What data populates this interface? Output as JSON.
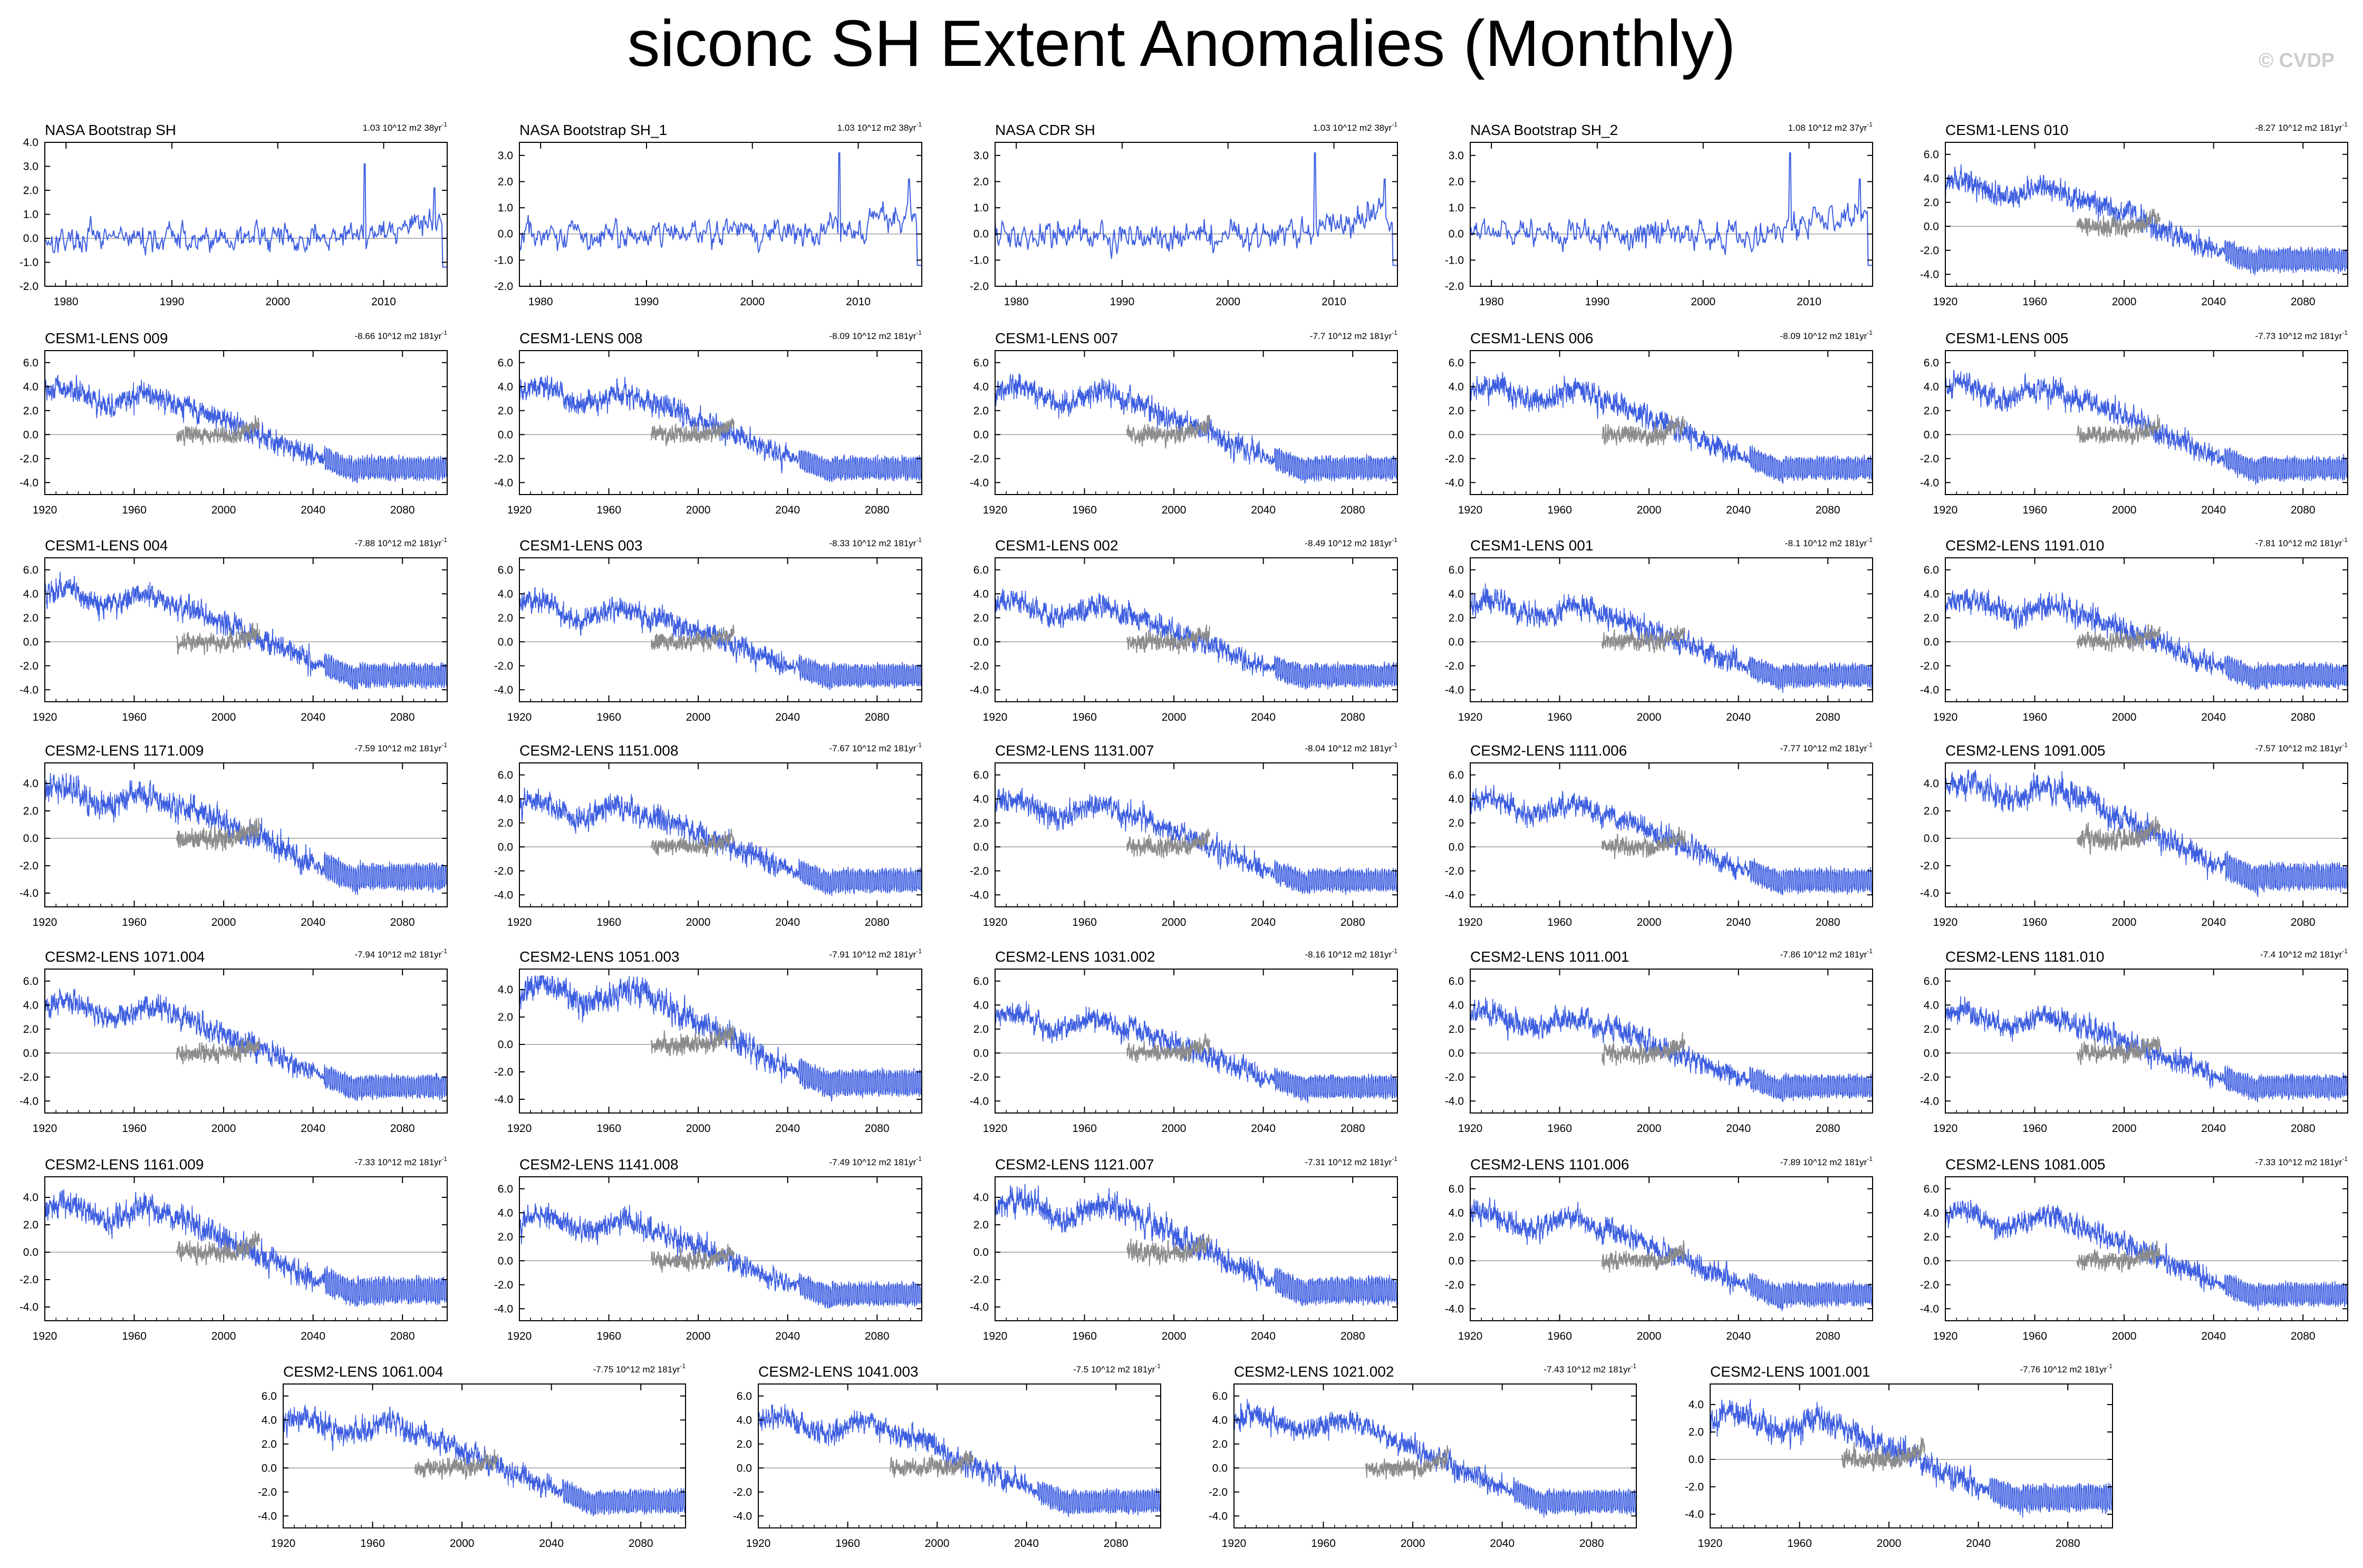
{
  "figure": {
    "title": "siconc SH Extent Anomalies (Monthly)",
    "watermark": "© CVDP"
  },
  "colors": {
    "model": "#3d5ee0",
    "observed": "#8c8c8c",
    "zero_line": "#b4b4b4",
    "axis": "#000000"
  },
  "chart_data": [
    {
      "type": "line",
      "title": "NASA Bootstrap SH",
      "trend": "1.03 10^12 m2 38yr",
      "xlim": [
        1978,
        2016
      ],
      "xticks": [
        1980,
        1990,
        2000,
        2010
      ],
      "ylim": [
        -2,
        4
      ],
      "yticks": [
        -2,
        -1,
        0,
        1,
        2,
        3,
        4
      ],
      "ytick_labels": [
        "-2.0",
        "-1.0",
        "0.0",
        "1.0",
        "2.0",
        "3.0",
        "4.0"
      ],
      "kind": "obs"
    },
    {
      "type": "line",
      "title": "NASA Bootstrap SH_1",
      "trend": "1.03 10^12 m2 38yr",
      "xlim": [
        1978,
        2016
      ],
      "xticks": [
        1980,
        1990,
        2000,
        2010
      ],
      "ylim": [
        -2,
        3.5
      ],
      "yticks": [
        -2,
        -1,
        0,
        1,
        2,
        3
      ],
      "ytick_labels": [
        "-2.0",
        "-1.0",
        "0.0",
        "1.0",
        "2.0",
        "3.0"
      ],
      "kind": "obs"
    },
    {
      "type": "line",
      "title": "NASA CDR SH",
      "trend": "1.03 10^12 m2 38yr",
      "xlim": [
        1978,
        2016
      ],
      "xticks": [
        1980,
        1990,
        2000,
        2010
      ],
      "ylim": [
        -2,
        3.5
      ],
      "yticks": [
        -2,
        -1,
        0,
        1,
        2,
        3
      ],
      "ytick_labels": [
        "-2.0",
        "-1.0",
        "0.0",
        "1.0",
        "2.0",
        "3.0"
      ],
      "kind": "obs"
    },
    {
      "type": "line",
      "title": "NASA Bootstrap SH_2",
      "trend": "1.08 10^12 m2 37yr",
      "xlim": [
        1978,
        2016
      ],
      "xticks": [
        1980,
        1990,
        2000,
        2010
      ],
      "ylim": [
        -2,
        3.5
      ],
      "yticks": [
        -2,
        -1,
        0,
        1,
        2,
        3
      ],
      "ytick_labels": [
        "-2.0",
        "-1.0",
        "0.0",
        "1.0",
        "2.0",
        "3.0"
      ],
      "kind": "obs"
    },
    {
      "type": "line",
      "title": "CESM1-LENS 010",
      "trend": "-8.27 10^12 m2 181yr",
      "xlim": [
        1920,
        2100
      ],
      "xticks": [
        1920,
        1960,
        2000,
        2040,
        2080
      ],
      "ylim": [
        -5,
        7
      ],
      "yticks": [
        -4,
        -2,
        0,
        2,
        4,
        6
      ],
      "ytick_labels": [
        "-4.0",
        "-2.0",
        "0.0",
        "2.0",
        "4.0",
        "6.0"
      ],
      "kind": "model"
    },
    {
      "type": "line",
      "title": "CESM1-LENS 009",
      "trend": "-8.66 10^12 m2 181yr",
      "xlim": [
        1920,
        2100
      ],
      "xticks": [
        1920,
        1960,
        2000,
        2040,
        2080
      ],
      "ylim": [
        -5,
        7
      ],
      "yticks": [
        -4,
        -2,
        0,
        2,
        4,
        6
      ],
      "ytick_labels": [
        "-4.0",
        "-2.0",
        "0.0",
        "2.0",
        "4.0",
        "6.0"
      ],
      "kind": "model"
    },
    {
      "type": "line",
      "title": "CESM1-LENS 008",
      "trend": "-8.09 10^12 m2 181yr",
      "xlim": [
        1920,
        2100
      ],
      "xticks": [
        1920,
        1960,
        2000,
        2040,
        2080
      ],
      "ylim": [
        -5,
        7
      ],
      "yticks": [
        -4,
        -2,
        0,
        2,
        4,
        6
      ],
      "ytick_labels": [
        "-4.0",
        "-2.0",
        "0.0",
        "2.0",
        "4.0",
        "6.0"
      ],
      "kind": "model"
    },
    {
      "type": "line",
      "title": "CESM1-LENS 007",
      "trend": "-7.7 10^12 m2 181yr",
      "xlim": [
        1920,
        2100
      ],
      "xticks": [
        1920,
        1960,
        2000,
        2040,
        2080
      ],
      "ylim": [
        -5,
        7
      ],
      "yticks": [
        -4,
        -2,
        0,
        2,
        4,
        6
      ],
      "ytick_labels": [
        "-4.0",
        "-2.0",
        "0.0",
        "2.0",
        "4.0",
        "6.0"
      ],
      "kind": "model"
    },
    {
      "type": "line",
      "title": "CESM1-LENS 006",
      "trend": "-8.09 10^12 m2 181yr",
      "xlim": [
        1920,
        2100
      ],
      "xticks": [
        1920,
        1960,
        2000,
        2040,
        2080
      ],
      "ylim": [
        -5,
        7
      ],
      "yticks": [
        -4,
        -2,
        0,
        2,
        4,
        6
      ],
      "ytick_labels": [
        "-4.0",
        "-2.0",
        "0.0",
        "2.0",
        "4.0",
        "6.0"
      ],
      "kind": "model"
    },
    {
      "type": "line",
      "title": "CESM1-LENS 005",
      "trend": "-7.73 10^12 m2 181yr",
      "xlim": [
        1920,
        2100
      ],
      "xticks": [
        1920,
        1960,
        2000,
        2040,
        2080
      ],
      "ylim": [
        -5,
        7
      ],
      "yticks": [
        -4,
        -2,
        0,
        2,
        4,
        6
      ],
      "ytick_labels": [
        "-4.0",
        "-2.0",
        "0.0",
        "2.0",
        "4.0",
        "6.0"
      ],
      "kind": "model"
    },
    {
      "type": "line",
      "title": "CESM1-LENS 004",
      "trend": "-7.88 10^12 m2 181yr",
      "xlim": [
        1920,
        2100
      ],
      "xticks": [
        1920,
        1960,
        2000,
        2040,
        2080
      ],
      "ylim": [
        -5,
        7
      ],
      "yticks": [
        -4,
        -2,
        0,
        2,
        4,
        6
      ],
      "ytick_labels": [
        "-4.0",
        "-2.0",
        "0.0",
        "2.0",
        "4.0",
        "6.0"
      ],
      "kind": "model"
    },
    {
      "type": "line",
      "title": "CESM1-LENS 003",
      "trend": "-8.33 10^12 m2 181yr",
      "xlim": [
        1920,
        2100
      ],
      "xticks": [
        1920,
        1960,
        2000,
        2040,
        2080
      ],
      "ylim": [
        -5,
        7
      ],
      "yticks": [
        -4,
        -2,
        0,
        2,
        4,
        6
      ],
      "ytick_labels": [
        "-4.0",
        "-2.0",
        "0.0",
        "2.0",
        "4.0",
        "6.0"
      ],
      "kind": "model"
    },
    {
      "type": "line",
      "title": "CESM1-LENS 002",
      "trend": "-8.49 10^12 m2 181yr",
      "xlim": [
        1920,
        2100
      ],
      "xticks": [
        1920,
        1960,
        2000,
        2040,
        2080
      ],
      "ylim": [
        -5,
        7
      ],
      "yticks": [
        -4,
        -2,
        0,
        2,
        4,
        6
      ],
      "ytick_labels": [
        "-4.0",
        "-2.0",
        "0.0",
        "2.0",
        "4.0",
        "6.0"
      ],
      "kind": "model"
    },
    {
      "type": "line",
      "title": "CESM1-LENS 001",
      "trend": "-8.1 10^12 m2 181yr",
      "xlim": [
        1920,
        2100
      ],
      "xticks": [
        1920,
        1960,
        2000,
        2040,
        2080
      ],
      "ylim": [
        -5,
        7
      ],
      "yticks": [
        -4,
        -2,
        0,
        2,
        4,
        6
      ],
      "ytick_labels": [
        "-4.0",
        "-2.0",
        "0.0",
        "2.0",
        "4.0",
        "6.0"
      ],
      "kind": "model"
    },
    {
      "type": "line",
      "title": "CESM2-LENS 1191.010",
      "trend": "-7.81 10^12 m2 181yr",
      "xlim": [
        1920,
        2100
      ],
      "xticks": [
        1920,
        1960,
        2000,
        2040,
        2080
      ],
      "ylim": [
        -5,
        7
      ],
      "yticks": [
        -4,
        -2,
        0,
        2,
        4,
        6
      ],
      "ytick_labels": [
        "-4.0",
        "-2.0",
        "0.0",
        "2.0",
        "4.0",
        "6.0"
      ],
      "kind": "model"
    },
    {
      "type": "line",
      "title": "CESM2-LENS 1171.009",
      "trend": "-7.59 10^12 m2 181yr",
      "xlim": [
        1920,
        2100
      ],
      "xticks": [
        1920,
        1960,
        2000,
        2040,
        2080
      ],
      "ylim": [
        -5,
        5.5
      ],
      "yticks": [
        -4,
        -2,
        0,
        2,
        4
      ],
      "ytick_labels": [
        "-4.0",
        "-2.0",
        "0.0",
        "2.0",
        "4.0"
      ],
      "kind": "model"
    },
    {
      "type": "line",
      "title": "CESM2-LENS 1151.008",
      "trend": "-7.67 10^12 m2 181yr",
      "xlim": [
        1920,
        2100
      ],
      "xticks": [
        1920,
        1960,
        2000,
        2040,
        2080
      ],
      "ylim": [
        -5,
        7
      ],
      "yticks": [
        -4,
        -2,
        0,
        2,
        4,
        6
      ],
      "ytick_labels": [
        "-4.0",
        "-2.0",
        "0.0",
        "2.0",
        "4.0",
        "6.0"
      ],
      "kind": "model"
    },
    {
      "type": "line",
      "title": "CESM2-LENS 1131.007",
      "trend": "-8.04 10^12 m2 181yr",
      "xlim": [
        1920,
        2100
      ],
      "xticks": [
        1920,
        1960,
        2000,
        2040,
        2080
      ],
      "ylim": [
        -5,
        7
      ],
      "yticks": [
        -4,
        -2,
        0,
        2,
        4,
        6
      ],
      "ytick_labels": [
        "-4.0",
        "-2.0",
        "0.0",
        "2.0",
        "4.0",
        "6.0"
      ],
      "kind": "model"
    },
    {
      "type": "line",
      "title": "CESM2-LENS 1111.006",
      "trend": "-7.77 10^12 m2 181yr",
      "xlim": [
        1920,
        2100
      ],
      "xticks": [
        1920,
        1960,
        2000,
        2040,
        2080
      ],
      "ylim": [
        -5,
        7
      ],
      "yticks": [
        -4,
        -2,
        0,
        2,
        4,
        6
      ],
      "ytick_labels": [
        "-4.0",
        "-2.0",
        "0.0",
        "2.0",
        "4.0",
        "6.0"
      ],
      "kind": "model"
    },
    {
      "type": "line",
      "title": "CESM2-LENS 1091.005",
      "trend": "-7.57 10^12 m2 181yr",
      "xlim": [
        1920,
        2100
      ],
      "xticks": [
        1920,
        1960,
        2000,
        2040,
        2080
      ],
      "ylim": [
        -5,
        5.5
      ],
      "yticks": [
        -4,
        -2,
        0,
        2,
        4
      ],
      "ytick_labels": [
        "-4.0",
        "-2.0",
        "0.0",
        "2.0",
        "4.0"
      ],
      "kind": "model"
    },
    {
      "type": "line",
      "title": "CESM2-LENS 1071.004",
      "trend": "-7.94 10^12 m2 181yr",
      "xlim": [
        1920,
        2100
      ],
      "xticks": [
        1920,
        1960,
        2000,
        2040,
        2080
      ],
      "ylim": [
        -5,
        7
      ],
      "yticks": [
        -4,
        -2,
        0,
        2,
        4,
        6
      ],
      "ytick_labels": [
        "-4.0",
        "-2.0",
        "0.0",
        "2.0",
        "4.0",
        "6.0"
      ],
      "kind": "model"
    },
    {
      "type": "line",
      "title": "CESM2-LENS 1051.003",
      "trend": "-7.91 10^12 m2 181yr",
      "xlim": [
        1920,
        2100
      ],
      "xticks": [
        1920,
        1960,
        2000,
        2040,
        2080
      ],
      "ylim": [
        -5,
        5.5
      ],
      "yticks": [
        -4,
        -2,
        0,
        2,
        4
      ],
      "ytick_labels": [
        "-4.0",
        "-2.0",
        "0.0",
        "2.0",
        "4.0"
      ],
      "kind": "model"
    },
    {
      "type": "line",
      "title": "CESM2-LENS 1031.002",
      "trend": "-8.16 10^12 m2 181yr",
      "xlim": [
        1920,
        2100
      ],
      "xticks": [
        1920,
        1960,
        2000,
        2040,
        2080
      ],
      "ylim": [
        -5,
        7
      ],
      "yticks": [
        -4,
        -2,
        0,
        2,
        4,
        6
      ],
      "ytick_labels": [
        "-4.0",
        "-2.0",
        "0.0",
        "2.0",
        "4.0",
        "6.0"
      ],
      "kind": "model"
    },
    {
      "type": "line",
      "title": "CESM2-LENS 1011.001",
      "trend": "-7.86 10^12 m2 181yr",
      "xlim": [
        1920,
        2100
      ],
      "xticks": [
        1920,
        1960,
        2000,
        2040,
        2080
      ],
      "ylim": [
        -5,
        7
      ],
      "yticks": [
        -4,
        -2,
        0,
        2,
        4,
        6
      ],
      "ytick_labels": [
        "-4.0",
        "-2.0",
        "0.0",
        "2.0",
        "4.0",
        "6.0"
      ],
      "kind": "model"
    },
    {
      "type": "line",
      "title": "CESM2-LENS 1181.010",
      "trend": "-7.4 10^12 m2 181yr",
      "xlim": [
        1920,
        2100
      ],
      "xticks": [
        1920,
        1960,
        2000,
        2040,
        2080
      ],
      "ylim": [
        -5,
        7
      ],
      "yticks": [
        -4,
        -2,
        0,
        2,
        4,
        6
      ],
      "ytick_labels": [
        "-4.0",
        "-2.0",
        "0.0",
        "2.0",
        "4.0",
        "6.0"
      ],
      "kind": "model"
    },
    {
      "type": "line",
      "title": "CESM2-LENS 1161.009",
      "trend": "-7.33 10^12 m2 181yr",
      "xlim": [
        1920,
        2100
      ],
      "xticks": [
        1920,
        1960,
        2000,
        2040,
        2080
      ],
      "ylim": [
        -5,
        5.5
      ],
      "yticks": [
        -4,
        -2,
        0,
        2,
        4
      ],
      "ytick_labels": [
        "-4.0",
        "-2.0",
        "0.0",
        "2.0",
        "4.0"
      ],
      "kind": "model"
    },
    {
      "type": "line",
      "title": "CESM2-LENS 1141.008",
      "trend": "-7.49 10^12 m2 181yr",
      "xlim": [
        1920,
        2100
      ],
      "xticks": [
        1920,
        1960,
        2000,
        2040,
        2080
      ],
      "ylim": [
        -5,
        7
      ],
      "yticks": [
        -4,
        -2,
        0,
        2,
        4,
        6
      ],
      "ytick_labels": [
        "-4.0",
        "-2.0",
        "0.0",
        "2.0",
        "4.0",
        "6.0"
      ],
      "kind": "model"
    },
    {
      "type": "line",
      "title": "CESM2-LENS 1121.007",
      "trend": "-7.31 10^12 m2 181yr",
      "xlim": [
        1920,
        2100
      ],
      "xticks": [
        1920,
        1960,
        2000,
        2040,
        2080
      ],
      "ylim": [
        -5,
        5.5
      ],
      "yticks": [
        -4,
        -2,
        0,
        2,
        4
      ],
      "ytick_labels": [
        "-4.0",
        "-2.0",
        "0.0",
        "2.0",
        "4.0"
      ],
      "kind": "model"
    },
    {
      "type": "line",
      "title": "CESM2-LENS 1101.006",
      "trend": "-7.89 10^12 m2 181yr",
      "xlim": [
        1920,
        2100
      ],
      "xticks": [
        1920,
        1960,
        2000,
        2040,
        2080
      ],
      "ylim": [
        -5,
        7
      ],
      "yticks": [
        -4,
        -2,
        0,
        2,
        4,
        6
      ],
      "ytick_labels": [
        "-4.0",
        "-2.0",
        "0.0",
        "2.0",
        "4.0",
        "6.0"
      ],
      "kind": "model"
    },
    {
      "type": "line",
      "title": "CESM2-LENS 1081.005",
      "trend": "-7.33 10^12 m2 181yr",
      "xlim": [
        1920,
        2100
      ],
      "xticks": [
        1920,
        1960,
        2000,
        2040,
        2080
      ],
      "ylim": [
        -5,
        7
      ],
      "yticks": [
        -4,
        -2,
        0,
        2,
        4,
        6
      ],
      "ytick_labels": [
        "-4.0",
        "-2.0",
        "0.0",
        "2.0",
        "4.0",
        "6.0"
      ],
      "kind": "model"
    },
    {
      "type": "line",
      "title": "CESM2-LENS 1061.004",
      "trend": "-7.75 10^12 m2 181yr",
      "xlim": [
        1920,
        2100
      ],
      "xticks": [
        1920,
        1960,
        2000,
        2040,
        2080
      ],
      "ylim": [
        -5,
        7
      ],
      "yticks": [
        -4,
        -2,
        0,
        2,
        4,
        6
      ],
      "ytick_labels": [
        "-4.0",
        "-2.0",
        "0.0",
        "2.0",
        "4.0",
        "6.0"
      ],
      "kind": "model"
    },
    {
      "type": "line",
      "title": "CESM2-LENS 1041.003",
      "trend": "-7.5 10^12 m2 181yr",
      "xlim": [
        1920,
        2100
      ],
      "xticks": [
        1920,
        1960,
        2000,
        2040,
        2080
      ],
      "ylim": [
        -5,
        7
      ],
      "yticks": [
        -4,
        -2,
        0,
        2,
        4,
        6
      ],
      "ytick_labels": [
        "-4.0",
        "-2.0",
        "0.0",
        "2.0",
        "4.0",
        "6.0"
      ],
      "kind": "model"
    },
    {
      "type": "line",
      "title": "CESM2-LENS 1021.002",
      "trend": "-7.43 10^12 m2 181yr",
      "xlim": [
        1920,
        2100
      ],
      "xticks": [
        1920,
        1960,
        2000,
        2040,
        2080
      ],
      "ylim": [
        -5,
        7
      ],
      "yticks": [
        -4,
        -2,
        0,
        2,
        4,
        6
      ],
      "ytick_labels": [
        "-4.0",
        "-2.0",
        "0.0",
        "2.0",
        "4.0",
        "6.0"
      ],
      "kind": "model"
    },
    {
      "type": "line",
      "title": "CESM2-LENS 1001.001",
      "trend": "-7.76 10^12 m2 181yr",
      "xlim": [
        1920,
        2100
      ],
      "xticks": [
        1920,
        1960,
        2000,
        2040,
        2080
      ],
      "ylim": [
        -5,
        5.5
      ],
      "yticks": [
        -4,
        -2,
        0,
        2,
        4
      ],
      "ytick_labels": [
        "-4.0",
        "-2.0",
        "0.0",
        "2.0",
        "4.0"
      ],
      "kind": "model"
    }
  ]
}
